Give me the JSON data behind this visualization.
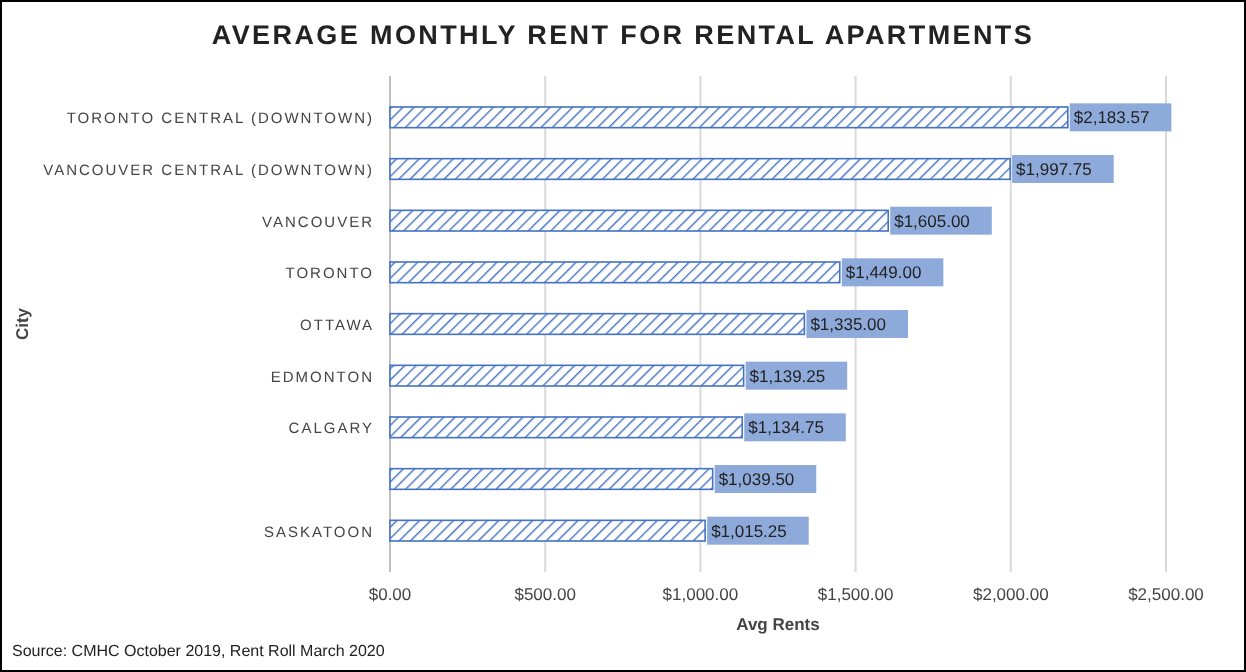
{
  "chart_data": {
    "type": "bar",
    "orientation": "horizontal",
    "title": "AVERAGE MONTHLY RENT FOR RENTAL APARTMENTS",
    "xlabel": "Avg Rents",
    "ylabel": "City",
    "categories": [
      "TORONTO CENTRAL (DOWNTOWN)",
      "VANCOUVER CENTRAL (DOWNTOWN)",
      "VANCOUVER",
      "TORONTO",
      "OTTAWA",
      "EDMONTON",
      "CALGARY",
      null,
      "SASKATOON"
    ],
    "values": [
      2183.57,
      1997.75,
      1605,
      1449,
      1335,
      1139.25,
      1134.75,
      1039.5,
      1015.25
    ],
    "value_labels": [
      "$2,183.57",
      "$1,997.75",
      "$1,605.00",
      "$1,449.00",
      "$1,335.00",
      "$1,139.25",
      "$1,134.75",
      "$1,039.50",
      "$1,015.25"
    ],
    "color": "#4472c4",
    "xlim": [
      0,
      2500
    ],
    "xticks": [
      {
        "value": 0,
        "label": "$0.00"
      },
      {
        "value": 500,
        "label": "$500.00"
      },
      {
        "value": 1000,
        "label": "$1,000.00"
      },
      {
        "value": 1500,
        "label": "$1,500.00"
      },
      {
        "value": 2000,
        "label": "$2,000.00"
      },
      {
        "value": 2500,
        "label": "$2,500.00"
      }
    ],
    "grid": "x",
    "annotations": [
      "Source: CMHC October 2019, Rent Roll March 2020"
    ]
  }
}
